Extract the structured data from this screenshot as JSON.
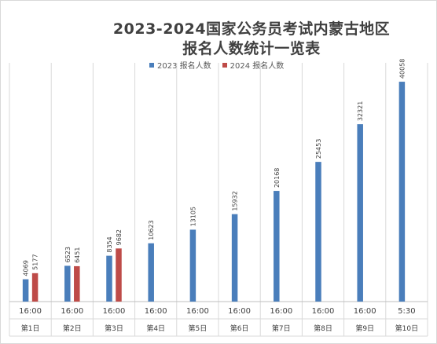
{
  "chart_data": {
    "type": "bar",
    "title_line1": "2023-2024国家公务员考试内蒙古地区",
    "title_line2": "报名人数统计一览表",
    "categories": [
      {
        "time": "16:00",
        "day": "第1日"
      },
      {
        "time": "16:00",
        "day": "第2日"
      },
      {
        "time": "16:00",
        "day": "第3日"
      },
      {
        "time": "16:00",
        "day": "第4日"
      },
      {
        "time": "16:00",
        "day": "第5日"
      },
      {
        "time": "16:00",
        "day": "第6日"
      },
      {
        "time": "16:00",
        "day": "第7日"
      },
      {
        "time": "16:00",
        "day": "第8日"
      },
      {
        "time": "16:00",
        "day": "第9日"
      },
      {
        "time": "5:30",
        "day": "第10日"
      }
    ],
    "series": [
      {
        "name": "2023 报名人数",
        "color": "#4a7ebb",
        "values": [
          4069,
          6523,
          8354,
          10623,
          13105,
          15932,
          20168,
          25453,
          32321,
          40058
        ]
      },
      {
        "name": "2024 报名人数",
        "color": "#be4b48",
        "values": [
          5177,
          6451,
          9682,
          null,
          null,
          null,
          null,
          null,
          null,
          null
        ]
      }
    ],
    "ylim": [
      0,
      43500
    ],
    "grid": false,
    "legend_position": "top"
  }
}
